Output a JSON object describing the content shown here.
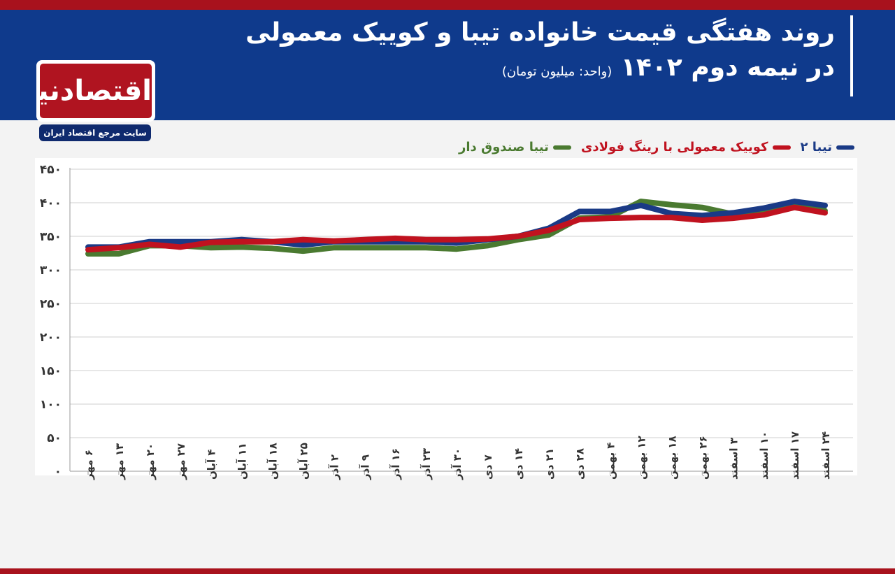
{
  "header": {
    "title_line1": "روند هفتگی قیمت خانواده تیبا و کوییک معمولی",
    "title_line2": "در نیمه دوم ۱۴۰۲",
    "unit": "(واحد: میلیون تومان)"
  },
  "logo": {
    "name": "اقتصادنیوز",
    "tagline": "سایت مرجع اقتصاد ایران"
  },
  "colors": {
    "header_bg": "#0f3a8c",
    "accent_red": "#a8121d"
  },
  "chart_data": {
    "type": "line",
    "title": "روند هفتگی قیمت خانواده تیبا و کوییک معمولی",
    "subtitle": "در نیمه دوم ۱۴۰۲ (واحد: میلیون تومان)",
    "ylim": [
      0,
      450
    ],
    "y_ticks": [
      0,
      50,
      100,
      150,
      200,
      250,
      300,
      350,
      400,
      450
    ],
    "y_tick_labels": [
      "۰",
      "۵۰",
      "۱۰۰",
      "۱۵۰",
      "۲۰۰",
      "۲۵۰",
      "۳۰۰",
      "۳۵۰",
      "۴۰۰",
      "۴۵۰"
    ],
    "grid": true,
    "legend_position": "top-right",
    "categories": [
      "۶ مهر",
      "۱۳ مهر",
      "۲۰ مهر",
      "۲۷ مهر",
      "۴ آبان",
      "۱۱ آبان",
      "۱۸ آبان",
      "۲۵ آبان",
      "۲ آذر",
      "۹ آذر",
      "۱۶ آذر",
      "۲۳ آذر",
      "۳۰ آذر",
      "۷ دی",
      "۱۴ دی",
      "۲۱ دی",
      "۲۸ دی",
      "۴ بهمن",
      "۱۲ بهمن",
      "۱۸ بهمن",
      "۲۶ بهمن",
      "۳ اسفند",
      "۱۰ اسفند",
      "۱۷ اسفند",
      "۲۴ اسفند"
    ],
    "series": [
      {
        "name": "تیبا ۲",
        "color": "#1a3a86",
        "values": [
          334,
          334,
          342,
          342,
          342,
          345,
          342,
          337,
          342,
          342,
          342,
          342,
          340,
          345,
          350,
          362,
          387,
          387,
          396,
          384,
          381,
          385,
          392,
          402,
          396
        ]
      },
      {
        "name": "کوییک معمولی با رینگ فولادی",
        "color": "#c0121f",
        "values": [
          330,
          333,
          338,
          334,
          341,
          342,
          342,
          345,
          343,
          345,
          347,
          345,
          345,
          346,
          350,
          359,
          375,
          377,
          378,
          378,
          374,
          377,
          382,
          393,
          385
        ]
      },
      {
        "name": "تیبا صندوق دار",
        "color": "#4a7a30",
        "values": [
          324,
          324,
          336,
          336,
          333,
          334,
          332,
          328,
          333,
          333,
          333,
          333,
          331,
          336,
          345,
          352,
          377,
          379,
          402,
          397,
          393,
          383,
          387,
          395,
          388
        ]
      }
    ]
  }
}
